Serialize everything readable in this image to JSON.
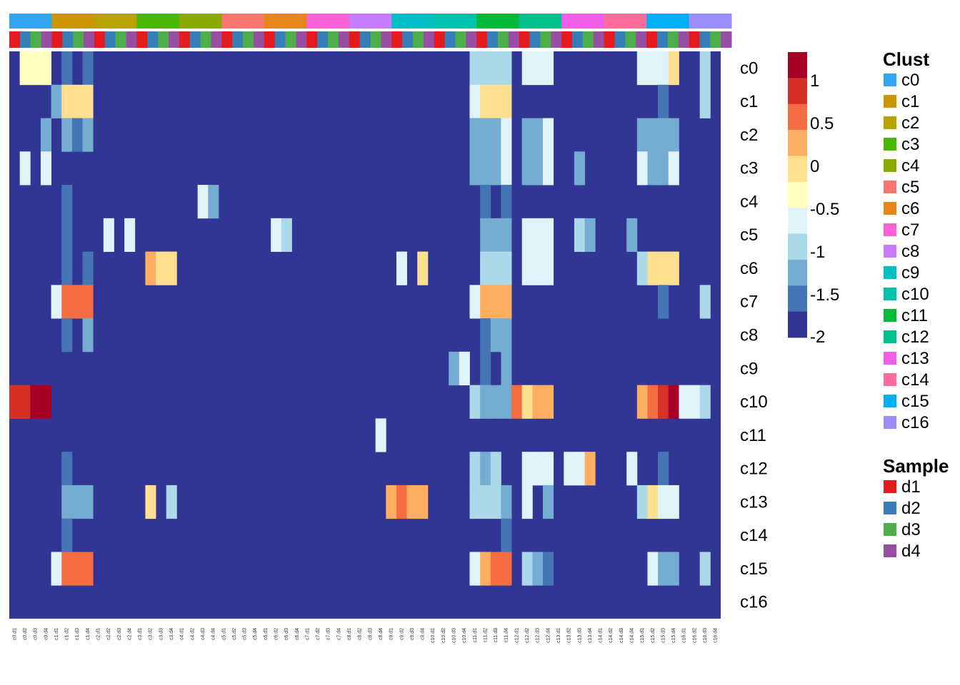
{
  "chart_data": {
    "type": "heatmap",
    "rows": [
      "c0",
      "c1",
      "c2",
      "c3",
      "c4",
      "c5",
      "c6",
      "c7",
      "c8",
      "c9",
      "c10",
      "c11",
      "c12",
      "c13",
      "c14",
      "c15",
      "c16"
    ],
    "columns": [
      "c0.d1",
      "c0.d2",
      "c0.d3",
      "c0.d4",
      "c1.d1",
      "c1.d2",
      "c1.d3",
      "c1.d4",
      "c2.d1",
      "c2.d2",
      "c2.d3",
      "c2.d4",
      "c3.d1",
      "c3.d2",
      "c3.d3",
      "c3.d4",
      "c4.d1",
      "c4.d2",
      "c4.d3",
      "c4.d4",
      "c5.d1",
      "c5.d2",
      "c5.d3",
      "c5.d4",
      "c6.d1",
      "c6.d2",
      "c6.d3",
      "c6.d4",
      "c7.d1",
      "c7.d2",
      "c7.d3",
      "c7.d4",
      "c8.d1",
      "c8.d2",
      "c8.d3",
      "c8.d4",
      "c9.d1",
      "c9.d2",
      "c9.d3",
      "c9.d4",
      "c10.d1",
      "c10.d2",
      "c10.d3",
      "c10.d4",
      "c11.d1",
      "c11.d2",
      "c11.d3",
      "c11.d4",
      "c12.d1",
      "c12.d2",
      "c12.d3",
      "c12.d4",
      "c13.d1",
      "c13.d2",
      "c13.d3",
      "c13.d4",
      "c14.d1",
      "c14.d2",
      "c14.d3",
      "c14.d4",
      "c15.d1",
      "c15.d2",
      "c15.d3",
      "c15.d4",
      "c16.d1",
      "c16.d2",
      "c16.d3",
      "c16.d4"
    ],
    "default_value": -2,
    "cells": [
      [
        "c0",
        1,
        -0.1
      ],
      [
        "c0",
        2,
        -0.1
      ],
      [
        "c0",
        3,
        -0.1
      ],
      [
        "c0",
        5,
        -1.5
      ],
      [
        "c0",
        7,
        -1.5
      ],
      [
        "c0",
        44,
        -1
      ],
      [
        "c0",
        45,
        -1
      ],
      [
        "c0",
        46,
        -1
      ],
      [
        "c0",
        47,
        -1
      ],
      [
        "c0",
        49,
        -0.5
      ],
      [
        "c0",
        50,
        -0.7
      ],
      [
        "c0",
        51,
        -0.7
      ],
      [
        "c0",
        60,
        -0.7
      ],
      [
        "c0",
        61,
        -0.5
      ],
      [
        "c0",
        62,
        -0.5
      ],
      [
        "c0",
        63,
        0
      ],
      [
        "c0",
        66,
        -1
      ],
      [
        "c1",
        4,
        -1.2
      ],
      [
        "c1",
        5,
        0
      ],
      [
        "c1",
        6,
        0
      ],
      [
        "c1",
        7,
        0
      ],
      [
        "c1",
        44,
        -0.7
      ],
      [
        "c1",
        45,
        0
      ],
      [
        "c1",
        46,
        0
      ],
      [
        "c1",
        47,
        0
      ],
      [
        "c1",
        62,
        -1.5
      ],
      [
        "c1",
        66,
        -1
      ],
      [
        "c2",
        3,
        -1.2
      ],
      [
        "c2",
        5,
        -1.3
      ],
      [
        "c2",
        6,
        -1.5
      ],
      [
        "c2",
        7,
        -1.3
      ],
      [
        "c2",
        44,
        -1.2
      ],
      [
        "c2",
        45,
        -1.2
      ],
      [
        "c2",
        46,
        -1.2
      ],
      [
        "c2",
        47,
        -0.7
      ],
      [
        "c2",
        49,
        -1.2
      ],
      [
        "c2",
        50,
        -1.3
      ],
      [
        "c2",
        51,
        -0.7
      ],
      [
        "c2",
        60,
        -1.2
      ],
      [
        "c2",
        61,
        -1.2
      ],
      [
        "c2",
        62,
        -1.2
      ],
      [
        "c2",
        63,
        -1.2
      ],
      [
        "c3",
        1,
        -0.5
      ],
      [
        "c3",
        3,
        -0.5
      ],
      [
        "c3",
        44,
        -1.2
      ],
      [
        "c3",
        45,
        -1.2
      ],
      [
        "c3",
        46,
        -1.2
      ],
      [
        "c3",
        47,
        -0.5
      ],
      [
        "c3",
        49,
        -1.2
      ],
      [
        "c3",
        50,
        -1.2
      ],
      [
        "c3",
        51,
        -0.5
      ],
      [
        "c3",
        54,
        -1.2
      ],
      [
        "c3",
        60,
        -0.7
      ],
      [
        "c3",
        61,
        -1.2
      ],
      [
        "c3",
        62,
        -1.2
      ],
      [
        "c3",
        63,
        -0.7
      ],
      [
        "c4",
        5,
        -1.7
      ],
      [
        "c4",
        18,
        -0.7
      ],
      [
        "c4",
        19,
        -1.3
      ],
      [
        "c4",
        45,
        -1.7
      ],
      [
        "c4",
        47,
        -1.7
      ],
      [
        "c5",
        5,
        -1.7
      ],
      [
        "c5",
        9,
        -0.5
      ],
      [
        "c5",
        11,
        -0.5
      ],
      [
        "c5",
        25,
        -0.5
      ],
      [
        "c5",
        26,
        -1
      ],
      [
        "c5",
        45,
        -1.3
      ],
      [
        "c5",
        46,
        -1.3
      ],
      [
        "c5",
        47,
        -1.3
      ],
      [
        "c5",
        49,
        -0.5
      ],
      [
        "c5",
        50,
        -0.5
      ],
      [
        "c5",
        51,
        -0.7
      ],
      [
        "c5",
        54,
        -1
      ],
      [
        "c5",
        55,
        -1.2
      ],
      [
        "c5",
        59,
        -1.2
      ],
      [
        "c6",
        5,
        -1.7
      ],
      [
        "c6",
        7,
        -1.5
      ],
      [
        "c6",
        13,
        0.5
      ],
      [
        "c6",
        14,
        0
      ],
      [
        "c6",
        15,
        0
      ],
      [
        "c6",
        37,
        -0.5
      ],
      [
        "c6",
        39,
        0
      ],
      [
        "c6",
        45,
        -1
      ],
      [
        "c6",
        46,
        -1
      ],
      [
        "c6",
        47,
        -1
      ],
      [
        "c6",
        49,
        -0.7
      ],
      [
        "c6",
        50,
        -0.7
      ],
      [
        "c6",
        51,
        -0.7
      ],
      [
        "c6",
        60,
        -1
      ],
      [
        "c6",
        61,
        0
      ],
      [
        "c6",
        62,
        0
      ],
      [
        "c6",
        63,
        0
      ],
      [
        "c7",
        4,
        -0.5
      ],
      [
        "c7",
        5,
        1
      ],
      [
        "c7",
        6,
        1
      ],
      [
        "c7",
        7,
        1
      ],
      [
        "c7",
        44,
        -0.5
      ],
      [
        "c7",
        45,
        0.5
      ],
      [
        "c7",
        46,
        0.5
      ],
      [
        "c7",
        47,
        0.5
      ],
      [
        "c7",
        62,
        -1.5
      ],
      [
        "c7",
        66,
        -1
      ],
      [
        "c8",
        5,
        -1.7
      ],
      [
        "c8",
        7,
        -1.3
      ],
      [
        "c8",
        45,
        -1.7
      ],
      [
        "c8",
        46,
        -1.3
      ],
      [
        "c8",
        47,
        -1.3
      ],
      [
        "c9",
        42,
        -1.2
      ],
      [
        "c9",
        43,
        -0.5
      ],
      [
        "c9",
        45,
        -1.7
      ],
      [
        "c9",
        47,
        -1.3
      ],
      [
        "c10",
        0,
        1.2
      ],
      [
        "c10",
        1,
        1.2
      ],
      [
        "c10",
        2,
        1.6
      ],
      [
        "c10",
        3,
        1.6
      ],
      [
        "c10",
        44,
        -1
      ],
      [
        "c10",
        45,
        -1.3
      ],
      [
        "c10",
        46,
        -1.2
      ],
      [
        "c10",
        47,
        -1.2
      ],
      [
        "c10",
        48,
        1
      ],
      [
        "c10",
        49,
        0
      ],
      [
        "c10",
        50,
        0.5
      ],
      [
        "c10",
        51,
        0.5
      ],
      [
        "c10",
        60,
        0.5
      ],
      [
        "c10",
        61,
        1
      ],
      [
        "c10",
        62,
        1.2
      ],
      [
        "c10",
        63,
        1.6
      ],
      [
        "c10",
        64,
        -0.7
      ],
      [
        "c10",
        65,
        -0.5
      ],
      [
        "c10",
        66,
        -1
      ],
      [
        "c11",
        35,
        -0.5
      ],
      [
        "c12",
        5,
        -1.7
      ],
      [
        "c12",
        44,
        -1
      ],
      [
        "c12",
        45,
        -1.3
      ],
      [
        "c12",
        46,
        -1
      ],
      [
        "c12",
        49,
        -0.7
      ],
      [
        "c12",
        50,
        -0.7
      ],
      [
        "c12",
        51,
        -0.7
      ],
      [
        "c12",
        53,
        -0.5
      ],
      [
        "c12",
        54,
        -0.5
      ],
      [
        "c12",
        55,
        0.5
      ],
      [
        "c12",
        59,
        -0.7
      ],
      [
        "c12",
        62,
        -1.5
      ],
      [
        "c13",
        5,
        -1.3
      ],
      [
        "c13",
        6,
        -1.3
      ],
      [
        "c13",
        7,
        -1.3
      ],
      [
        "c13",
        13,
        0
      ],
      [
        "c13",
        15,
        -1
      ],
      [
        "c13",
        36,
        0.5
      ],
      [
        "c13",
        37,
        1
      ],
      [
        "c13",
        38,
        0.5
      ],
      [
        "c13",
        39,
        0.5
      ],
      [
        "c13",
        44,
        -1
      ],
      [
        "c13",
        45,
        -1
      ],
      [
        "c13",
        46,
        -1
      ],
      [
        "c13",
        47,
        -1.2
      ],
      [
        "c13",
        49,
        -0.7
      ],
      [
        "c13",
        51,
        -1.2
      ],
      [
        "c13",
        60,
        -1
      ],
      [
        "c13",
        61,
        0
      ],
      [
        "c13",
        62,
        -0.5
      ],
      [
        "c13",
        63,
        -0.7
      ],
      [
        "c14",
        5,
        -1.7
      ],
      [
        "c14",
        47,
        -1.7
      ],
      [
        "c15",
        4,
        -0.5
      ],
      [
        "c15",
        5,
        1
      ],
      [
        "c15",
        6,
        1
      ],
      [
        "c15",
        7,
        1
      ],
      [
        "c15",
        44,
        -0.5
      ],
      [
        "c15",
        45,
        0.5
      ],
      [
        "c15",
        46,
        1
      ],
      [
        "c15",
        47,
        1
      ],
      [
        "c15",
        49,
        -1
      ],
      [
        "c15",
        50,
        -1.3
      ],
      [
        "c15",
        51,
        -1.7
      ],
      [
        "c15",
        61,
        -0.7
      ],
      [
        "c15",
        62,
        -1.2
      ],
      [
        "c15",
        63,
        -1.2
      ],
      [
        "c15",
        66,
        -1
      ]
    ],
    "color_scale": {
      "ticks": [
        "1",
        "0.5",
        "0",
        "-0.5",
        "-1",
        "-1.5",
        "-2"
      ],
      "colors": [
        "#a50026",
        "#d73027",
        "#f46d43",
        "#fdae61",
        "#fee090",
        "#ffffbf",
        "#e0f3f8",
        "#abd9e9",
        "#74add1",
        "#4575b4",
        "#313695"
      ]
    },
    "cluster_annotation": {
      "title": "Clust",
      "labels": [
        "c0",
        "c1",
        "c2",
        "c3",
        "c4",
        "c5",
        "c6",
        "c7",
        "c8",
        "c9",
        "c10",
        "c11",
        "c12",
        "c13",
        "c14",
        "c15",
        "c16"
      ],
      "colors": [
        "#33a4f0",
        "#cc9600",
        "#b8a200",
        "#4ab800",
        "#8aaa00",
        "#f8766d",
        "#e6861a",
        "#fb61d7",
        "#c77cff",
        "#00bfc4",
        "#00c1aa",
        "#00ba38",
        "#00c08b",
        "#f05fe8",
        "#ff6c9c",
        "#00b0f6",
        "#9c8dfc"
      ]
    },
    "sample_annotation": {
      "title": "Sample",
      "labels": [
        "d1",
        "d2",
        "d3",
        "d4"
      ],
      "colors": [
        "#e41a1c",
        "#377eb8",
        "#4daf4a",
        "#984ea3"
      ]
    }
  }
}
